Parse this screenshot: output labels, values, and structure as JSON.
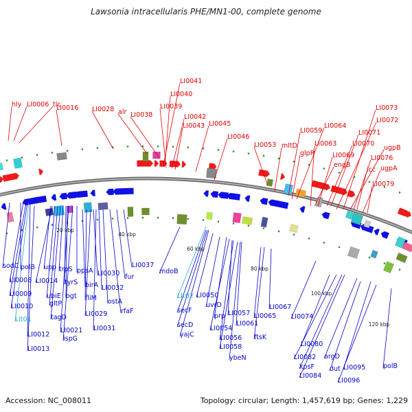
{
  "header": {
    "title": "Lawsonia intracellularis PHE/MN1-00, complete genome"
  },
  "footer": {
    "accession": "Accession: NC_008011",
    "stats": "Topology: circular; Length: 1,457,619 bp; Genes: 1,229"
  },
  "colors": {
    "forward_label": "#e00000",
    "reverse_label": "#0000cc",
    "rna_label": "#22aacc",
    "backbone": "#888888"
  },
  "scale_marks": [
    "20 kbp",
    "40 kbp",
    "60 kbp",
    "80 kbp",
    "100 kbp",
    "120 kbp"
  ],
  "top_labels": [
    "hly",
    "LI0006",
    "tlc",
    "LI0016",
    "LI0028",
    "alr",
    "LI0038",
    "LI0041",
    "LI0040",
    "LI0039",
    "LI0042",
    "LI0043",
    "LI0045",
    "LI0046",
    "LI0053",
    "mltD",
    "LI0059",
    "glpR",
    "LI0064",
    "LI0063",
    "engB",
    "LI0069",
    "LI0070",
    "LI0071",
    "LI0072",
    "LI0073",
    "ugpB",
    "LI0076",
    "icc",
    "ugpA",
    "LI0079"
  ],
  "bottom_labels": [
    "sodC",
    "polB",
    "LI0008",
    "LI0009",
    "LI0010",
    "Llt01",
    "LI0012",
    "LI0013",
    "upp",
    "LI0014",
    "ubiE",
    "gltP",
    "tagD",
    "trpS",
    "tyrS",
    "ogt",
    "LI0021",
    "ispG",
    "ppsA",
    "birA",
    "fliM",
    "LI0029",
    "LI0030",
    "LI0031",
    "LI0032",
    "ostA",
    "rfaF",
    "fur",
    "LI0037",
    "mdoB",
    "Llt02",
    "secF",
    "secD",
    "yajC",
    "LI0050",
    "uvrD",
    "prp",
    "LI0054",
    "LI0057",
    "LI0056",
    "LI0058",
    "ybeN",
    "LI0061",
    "LI0065",
    "ftsK",
    "LI0067",
    "LI0074",
    "LI0080",
    "LI0082",
    "kpsF",
    "LI0084",
    "argD",
    "dut",
    "LI0095",
    "LI0096",
    "polB"
  ]
}
